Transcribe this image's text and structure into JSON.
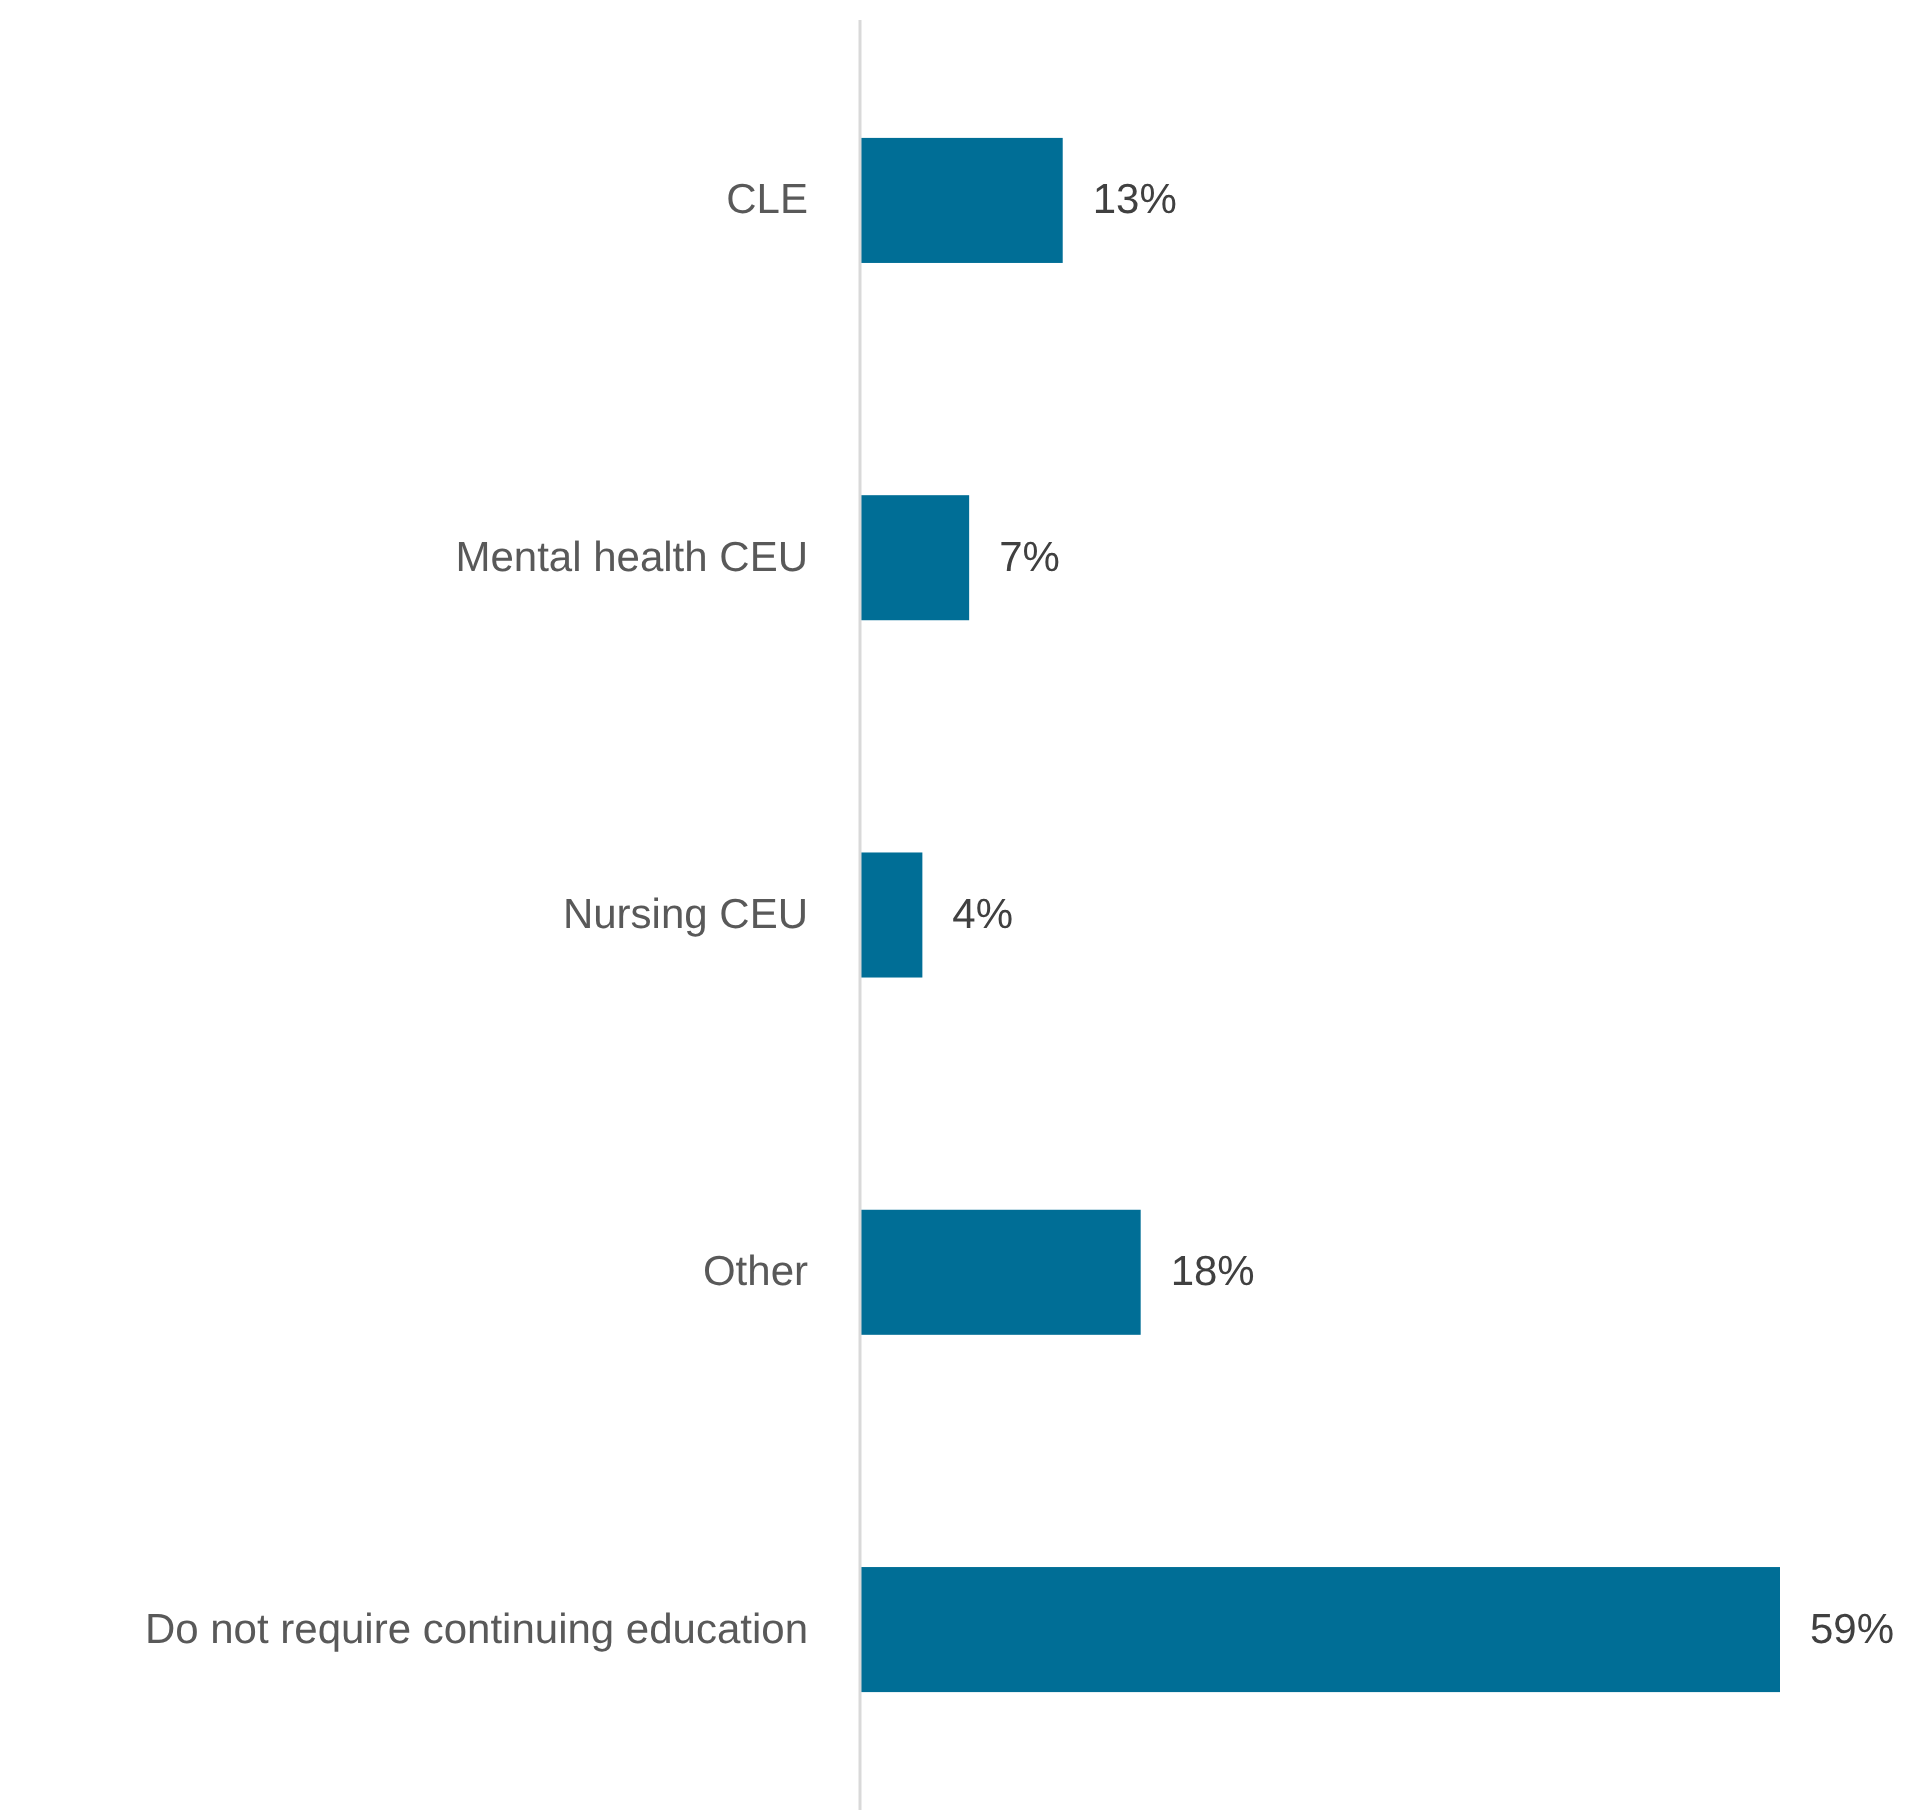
{
  "chart_data": {
    "type": "bar",
    "orientation": "horizontal",
    "categories": [
      "CLE",
      "Mental health CEU",
      "Nursing CEU",
      "Other",
      "Do not require continuing education"
    ],
    "values": [
      13,
      7,
      4,
      18,
      59
    ],
    "value_labels": [
      "13%",
      "7%",
      "4%",
      "18%",
      "59%"
    ],
    "color": "#006e96"
  }
}
